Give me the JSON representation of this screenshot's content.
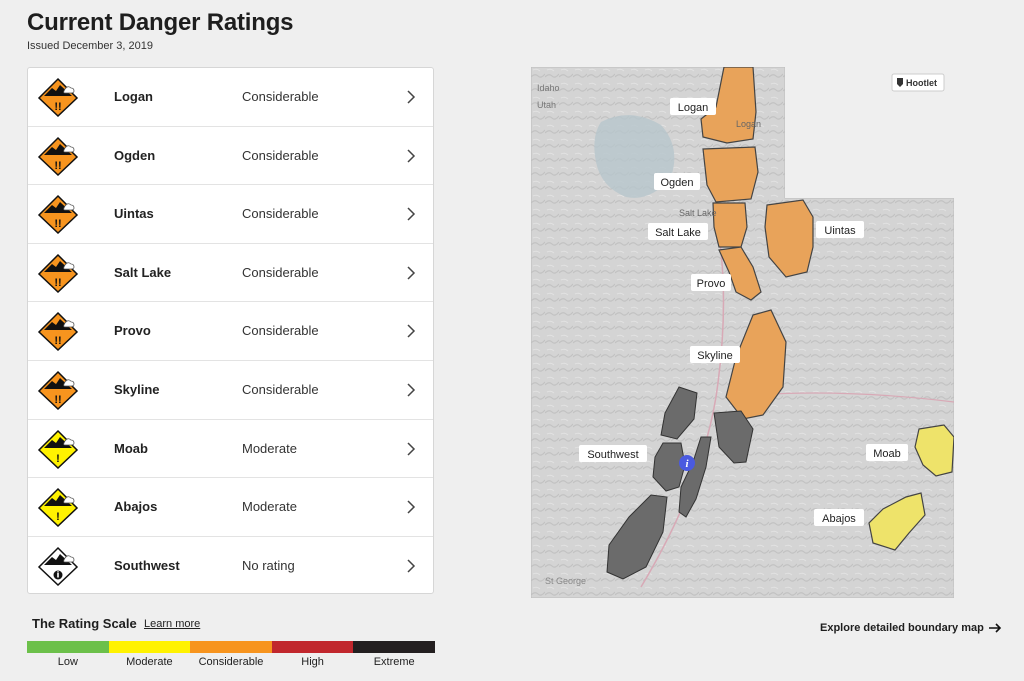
{
  "page": {
    "title": "Current Danger Ratings",
    "issued": "Issued December 3, 2019"
  },
  "regions": [
    {
      "name": "Logan",
      "rating": "Considerable",
      "level": 3
    },
    {
      "name": "Ogden",
      "rating": "Considerable",
      "level": 3
    },
    {
      "name": "Uintas",
      "rating": "Considerable",
      "level": 3
    },
    {
      "name": "Salt Lake",
      "rating": "Considerable",
      "level": 3
    },
    {
      "name": "Provo",
      "rating": "Considerable",
      "level": 3
    },
    {
      "name": "Skyline",
      "rating": "Considerable",
      "level": 3
    },
    {
      "name": "Moab",
      "rating": "Moderate",
      "level": 2
    },
    {
      "name": "Abajos",
      "rating": "Moderate",
      "level": 2
    },
    {
      "name": "Southwest",
      "rating": "No rating",
      "level": 0
    }
  ],
  "scale": {
    "title": "The Rating Scale",
    "learn_more": "Learn more",
    "levels": [
      {
        "label": "Low",
        "color": "#6cc04a"
      },
      {
        "label": "Moderate",
        "color": "#fff200"
      },
      {
        "label": "Considerable",
        "color": "#f7941e"
      },
      {
        "label": "High",
        "color": "#c1272d"
      },
      {
        "label": "Extreme",
        "color": "#231f20"
      }
    ]
  },
  "map": {
    "state_labels": [
      "Idaho",
      "Utah"
    ],
    "city_labels": [
      "Logan",
      "Salt Lake",
      "St George"
    ],
    "region_labels": {
      "logan": "Logan",
      "ogden": "Ogden",
      "saltlake": "Salt Lake",
      "uintas": "Uintas",
      "provo": "Provo",
      "skyline": "Skyline",
      "southwest": "Southwest",
      "moab": "Moab",
      "abajos": "Abajos"
    },
    "badge": "Hootlet",
    "info_icon": "info-icon"
  },
  "explore": {
    "label": "Explore detailed boundary map"
  },
  "colors": {
    "considerable": "#e8a35a",
    "moderate": "#eee36a",
    "none": "#6b6b6b",
    "icon_considerable": "#f7941e",
    "icon_moderate": "#fff200"
  }
}
